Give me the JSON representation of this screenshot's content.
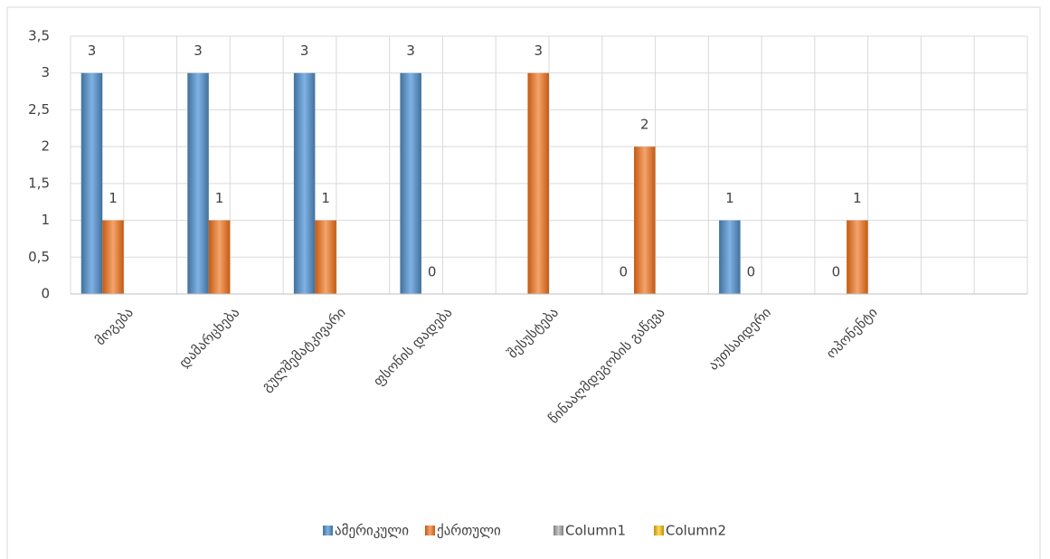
{
  "chart_data": {
    "type": "bar",
    "categories": [
      "მოგება",
      "დამარცხება",
      "გულშემატკივარი",
      "ფსონის დადება",
      "შესუსტება",
      "წინააღმდეგობის გაწევა",
      "აუთსაიდერი",
      "ოპონენტი",
      null
    ],
    "series": [
      {
        "name": "ამერიკული",
        "color": "#5b9bd5",
        "values": [
          3,
          3,
          3,
          3,
          null,
          0,
          1,
          0,
          null
        ]
      },
      {
        "name": "ქართული",
        "color": "#ed7d31",
        "values": [
          1,
          1,
          1,
          0,
          3,
          2,
          0,
          1,
          null
        ]
      },
      {
        "name": "Column1",
        "color": "#a5a5a5",
        "values": [
          null,
          null,
          null,
          null,
          null,
          null,
          null,
          null,
          null
        ]
      },
      {
        "name": "Column2",
        "color": "#ffc000",
        "values": [
          null,
          null,
          null,
          null,
          null,
          null,
          null,
          null,
          null
        ]
      }
    ],
    "ylim": [
      0,
      3.5
    ],
    "yticks": [
      0,
      {
        "value": 0.5,
        "label": "0,5"
      },
      1,
      {
        "value": 1.5,
        "label": "1,5"
      },
      2,
      {
        "value": 2.5,
        "label": "2,5"
      },
      3,
      {
        "value": 3.5,
        "label": "3,5"
      }
    ],
    "grid": true,
    "legend": "bottom"
  }
}
